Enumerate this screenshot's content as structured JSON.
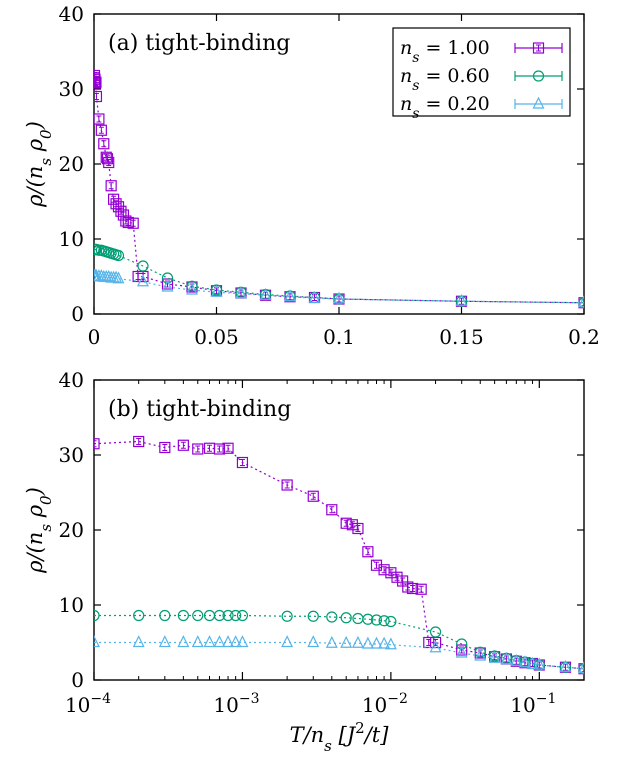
{
  "chart_data": [
    {
      "type": "line",
      "annotation": "(a) tight-binding",
      "ylabel": "ρ/(n_s ρ_0)",
      "xscale": "linear",
      "xlim": [
        0,
        0.2
      ],
      "ylim": [
        0,
        40
      ],
      "xticks": [
        0,
        0.05,
        0.1,
        0.15,
        0.2
      ],
      "xtick_labels": [
        "0",
        "0.05",
        "0.1",
        "0.15",
        "0.2"
      ],
      "yticks": [
        0,
        10,
        20,
        30,
        40
      ],
      "ytick_labels": [
        "0",
        "10",
        "20",
        "30",
        "40"
      ],
      "legend_position": "top-right",
      "series": [
        {
          "name": "n_s = 1.00",
          "color": "#9400d3",
          "marker": "square",
          "x": [
            0.0001,
            0.0002,
            0.0003,
            0.0004,
            0.0005,
            0.0006,
            0.0007,
            0.0008,
            0.001,
            0.002,
            0.003,
            0.004,
            0.005,
            0.0055,
            0.006,
            0.007,
            0.008,
            0.009,
            0.01,
            0.011,
            0.012,
            0.013,
            0.014,
            0.016,
            0.018,
            0.02,
            0.03,
            0.04,
            0.05,
            0.06,
            0.07,
            0.08,
            0.09,
            0.1,
            0.15,
            0.2
          ],
          "y": [
            31.5,
            31.8,
            31.0,
            31.3,
            30.8,
            30.9,
            30.8,
            30.9,
            29.0,
            26.0,
            24.5,
            22.7,
            20.9,
            20.7,
            20.2,
            17.1,
            15.3,
            14.7,
            14.3,
            13.7,
            13.2,
            12.4,
            12.2,
            12.1,
            5.0,
            5.0,
            4.0,
            3.6,
            3.1,
            2.8,
            2.5,
            2.3,
            2.2,
            2.0,
            1.7,
            1.5
          ]
        },
        {
          "name": "n_s = 0.60",
          "color": "#009e73",
          "marker": "circle",
          "x": [
            0.0001,
            0.0002,
            0.0003,
            0.0004,
            0.0005,
            0.0006,
            0.0007,
            0.0008,
            0.0009,
            0.001,
            0.002,
            0.003,
            0.004,
            0.005,
            0.006,
            0.007,
            0.008,
            0.009,
            0.01,
            0.02,
            0.03,
            0.04,
            0.05,
            0.06,
            0.07,
            0.08,
            0.09,
            0.1,
            0.15,
            0.2
          ],
          "y": [
            8.6,
            8.6,
            8.6,
            8.6,
            8.6,
            8.6,
            8.6,
            8.6,
            8.6,
            8.6,
            8.5,
            8.5,
            8.4,
            8.3,
            8.2,
            8.1,
            8.0,
            7.9,
            7.8,
            6.4,
            4.8,
            3.7,
            3.2,
            2.9,
            2.6,
            2.4,
            2.2,
            2.0,
            1.7,
            1.5
          ]
        },
        {
          "name": "n_s = 0.20",
          "color": "#56b4e9",
          "marker": "triangle",
          "x": [
            0.0001,
            0.0002,
            0.0003,
            0.0004,
            0.0005,
            0.0006,
            0.0007,
            0.0008,
            0.0009,
            0.001,
            0.002,
            0.003,
            0.004,
            0.005,
            0.006,
            0.007,
            0.008,
            0.009,
            0.01,
            0.02,
            0.03,
            0.04,
            0.05,
            0.06,
            0.07,
            0.08,
            0.09,
            0.1,
            0.15,
            0.2
          ],
          "y": [
            5.0,
            5.0,
            5.0,
            5.0,
            5.0,
            5.0,
            5.0,
            5.0,
            5.0,
            5.0,
            5.0,
            5.0,
            4.9,
            4.9,
            4.9,
            4.8,
            4.8,
            4.8,
            4.7,
            4.3,
            3.6,
            3.2,
            2.9,
            2.7,
            2.5,
            2.3,
            2.1,
            2.0,
            1.7,
            1.5
          ]
        }
      ]
    },
    {
      "type": "line",
      "annotation": "(b) tight-binding",
      "ylabel": "ρ/(n_s ρ_0)",
      "xlabel": "T/n_s [J^2/t]",
      "xscale": "log",
      "xlim": [
        0.0001,
        0.2
      ],
      "ylim": [
        0,
        40
      ],
      "xticks": [
        0.0001,
        0.001,
        0.01,
        0.1
      ],
      "xtick_mantissa": [
        "10",
        "10",
        "10",
        "10"
      ],
      "xtick_exponents": [
        "−4",
        "−3",
        "−2",
        "−1"
      ],
      "yticks": [
        0,
        10,
        20,
        30,
        40
      ],
      "ytick_labels": [
        "0",
        "10",
        "20",
        "30",
        "40"
      ],
      "series_ref": "same series as panel (a)"
    }
  ]
}
